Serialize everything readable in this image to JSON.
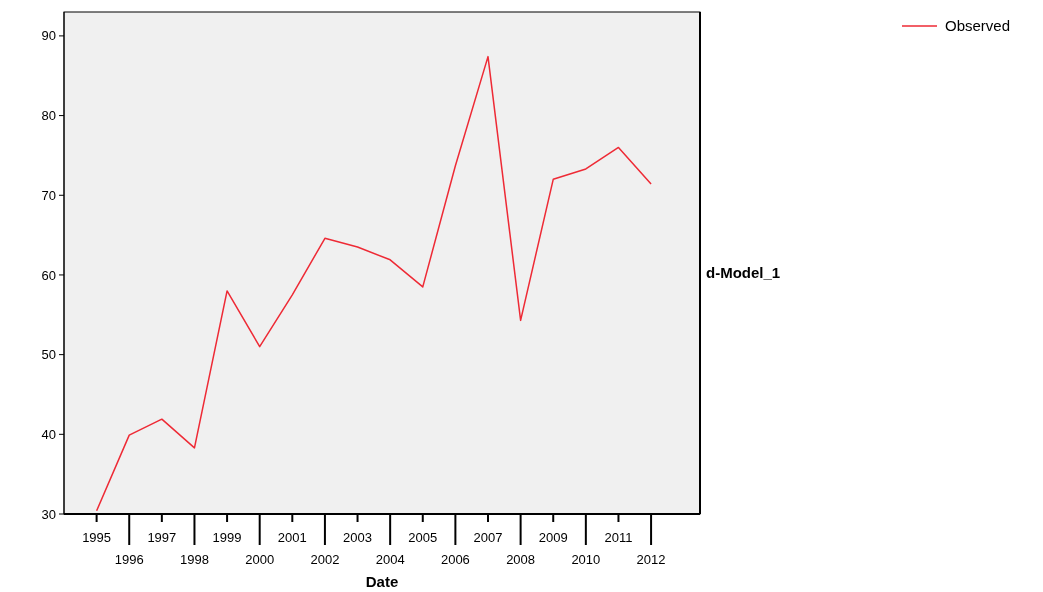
{
  "chart_data": {
    "type": "line",
    "xlabel": "Date",
    "ylabel": "d-Model_1",
    "categories": [
      "1995",
      "1996",
      "1997",
      "1998",
      "1999",
      "2000",
      "2001",
      "2002",
      "2003",
      "2004",
      "2005",
      "2006",
      "2007",
      "2008",
      "2009",
      "2010",
      "2011",
      "2012"
    ],
    "series": [
      {
        "name": "Observed",
        "color": "#ee2a35",
        "values": [
          30.4,
          39.9,
          41.9,
          38.3,
          58.0,
          51.0,
          57.5,
          64.6,
          63.5,
          61.9,
          58.5,
          73.7,
          87.4,
          54.3,
          72.0,
          73.3,
          76.0,
          71.4
        ]
      }
    ],
    "ylim": [
      30,
      93
    ],
    "yticks": [
      30,
      40,
      50,
      60,
      70,
      80,
      90
    ],
    "grid": false,
    "legend": "top right",
    "marker": "none",
    "line_style": "solid"
  }
}
